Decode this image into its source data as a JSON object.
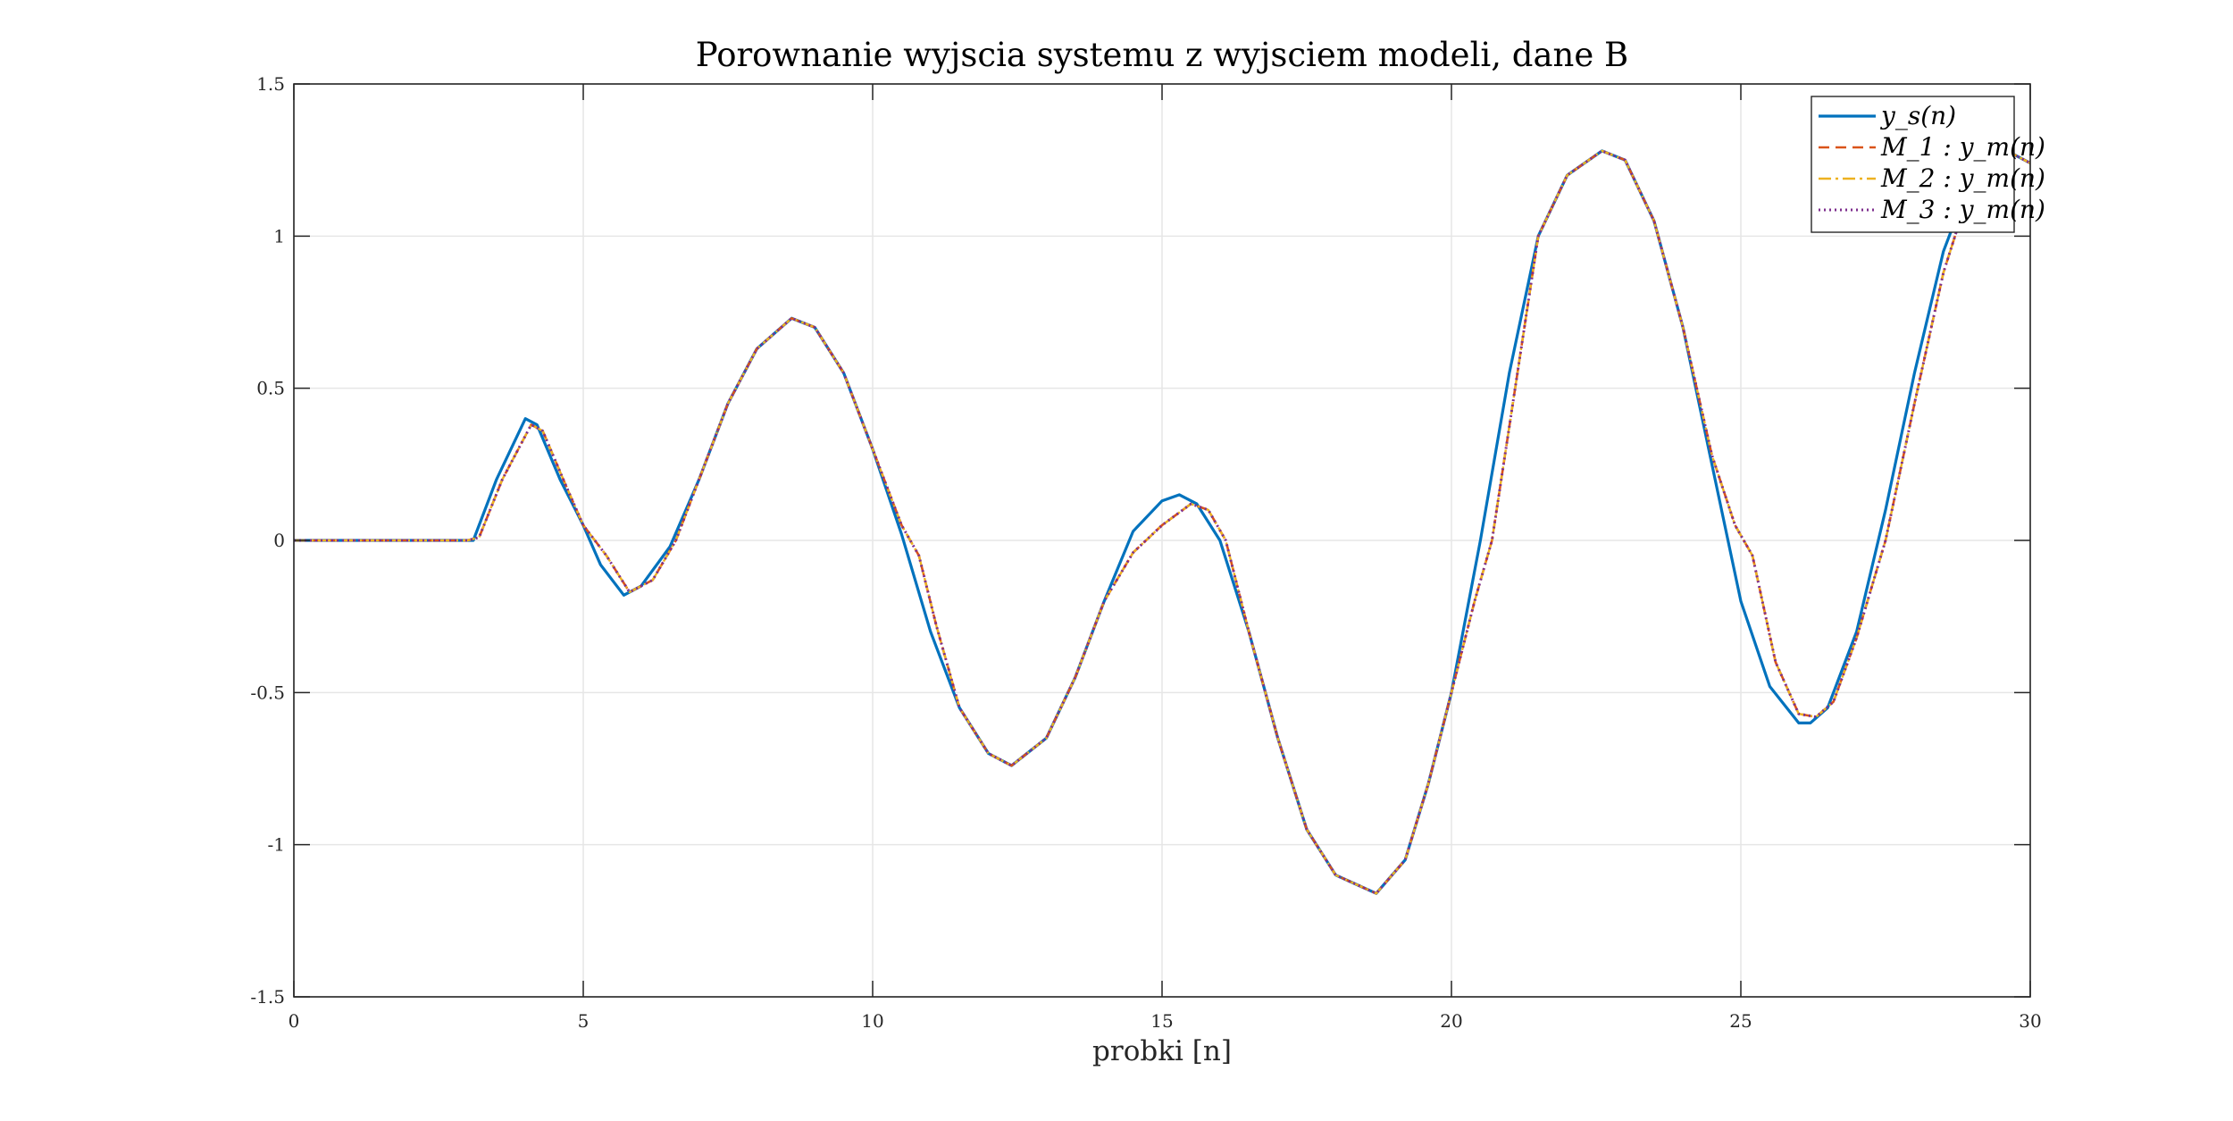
{
  "chart_data": {
    "type": "line",
    "title": "Porownanie wyjscia systemu z wyjsciem modeli, dane B",
    "xlabel": "probki [n]",
    "ylabel": "",
    "xlim": [
      0,
      30
    ],
    "ylim": [
      -1.5,
      1.5
    ],
    "xticks": [
      0,
      5,
      10,
      15,
      20,
      25,
      30
    ],
    "yticks": [
      -1.5,
      -1,
      -0.5,
      0,
      0.5,
      1,
      1.5
    ],
    "xtick_labels": [
      "0",
      "5",
      "10",
      "15",
      "20",
      "25",
      "30"
    ],
    "ytick_labels": [
      "-1.5",
      "-1",
      "-0.5",
      "0",
      "0.5",
      "1",
      "1.5"
    ],
    "grid": true,
    "legend_position": "top-right",
    "series": [
      {
        "name": "y_s(n)",
        "color": "#0072BD",
        "dash": "solid",
        "points": [
          [
            0,
            0
          ],
          [
            2,
            0
          ],
          [
            3,
            0
          ],
          [
            3.1,
            0
          ],
          [
            3.5,
            0.2
          ],
          [
            4,
            0.4
          ],
          [
            4.2,
            0.38
          ],
          [
            4.6,
            0.2
          ],
          [
            5,
            0.05
          ],
          [
            5.3,
            -0.08
          ],
          [
            5.7,
            -0.18
          ],
          [
            6,
            -0.15
          ],
          [
            6.5,
            -0.02
          ],
          [
            7,
            0.2
          ],
          [
            7.5,
            0.45
          ],
          [
            8,
            0.63
          ],
          [
            8.6,
            0.73
          ],
          [
            9,
            0.7
          ],
          [
            9.5,
            0.55
          ],
          [
            10,
            0.3
          ],
          [
            10.5,
            0.02
          ],
          [
            11,
            -0.3
          ],
          [
            11.5,
            -0.55
          ],
          [
            12,
            -0.7
          ],
          [
            12.4,
            -0.74
          ],
          [
            13,
            -0.65
          ],
          [
            13.5,
            -0.45
          ],
          [
            14,
            -0.2
          ],
          [
            14.5,
            0.03
          ],
          [
            15,
            0.13
          ],
          [
            15.3,
            0.15
          ],
          [
            15.6,
            0.12
          ],
          [
            16,
            0.0
          ],
          [
            16.5,
            -0.3
          ],
          [
            17,
            -0.65
          ],
          [
            17.5,
            -0.95
          ],
          [
            18,
            -1.1
          ],
          [
            18.7,
            -1.16
          ],
          [
            19.2,
            -1.05
          ],
          [
            19.6,
            -0.8
          ],
          [
            20,
            -0.5
          ],
          [
            20.5,
            0.0
          ],
          [
            21,
            0.55
          ],
          [
            21.5,
            1.0
          ],
          [
            22,
            1.2
          ],
          [
            22.6,
            1.28
          ],
          [
            23,
            1.25
          ],
          [
            23.5,
            1.05
          ],
          [
            24,
            0.7
          ],
          [
            24.5,
            0.25
          ],
          [
            25,
            -0.2
          ],
          [
            25.5,
            -0.48
          ],
          [
            26,
            -0.6
          ],
          [
            26.2,
            -0.6
          ],
          [
            26.5,
            -0.55
          ],
          [
            27,
            -0.3
          ],
          [
            27.5,
            0.1
          ],
          [
            28,
            0.55
          ],
          [
            28.5,
            0.95
          ],
          [
            29,
            1.2
          ],
          [
            29.5,
            1.29
          ],
          [
            30,
            1.24
          ]
        ]
      },
      {
        "name": "M_1 : y_m(n)",
        "color": "#D95319",
        "dash": "dashed",
        "points": [
          [
            0,
            0
          ],
          [
            2,
            0
          ],
          [
            3,
            0
          ],
          [
            3.2,
            0.01
          ],
          [
            3.6,
            0.2
          ],
          [
            4.1,
            0.38
          ],
          [
            4.3,
            0.36
          ],
          [
            4.7,
            0.18
          ],
          [
            5,
            0.05
          ],
          [
            5.4,
            -0.05
          ],
          [
            5.8,
            -0.17
          ],
          [
            6.2,
            -0.13
          ],
          [
            6.6,
            0.0
          ],
          [
            7,
            0.2
          ],
          [
            7.5,
            0.45
          ],
          [
            8,
            0.63
          ],
          [
            8.6,
            0.73
          ],
          [
            9,
            0.7
          ],
          [
            9.5,
            0.55
          ],
          [
            10,
            0.3
          ],
          [
            10.5,
            0.05
          ],
          [
            10.8,
            -0.05
          ],
          [
            11.1,
            -0.28
          ],
          [
            11.5,
            -0.55
          ],
          [
            12,
            -0.7
          ],
          [
            12.4,
            -0.74
          ],
          [
            13,
            -0.65
          ],
          [
            13.5,
            -0.45
          ],
          [
            14,
            -0.2
          ],
          [
            14.5,
            -0.04
          ],
          [
            15,
            0.05
          ],
          [
            15.5,
            0.12
          ],
          [
            15.8,
            0.1
          ],
          [
            16.1,
            0.0
          ],
          [
            16.5,
            -0.3
          ],
          [
            17,
            -0.65
          ],
          [
            17.5,
            -0.95
          ],
          [
            18,
            -1.1
          ],
          [
            18.7,
            -1.16
          ],
          [
            19.2,
            -1.05
          ],
          [
            19.6,
            -0.8
          ],
          [
            20,
            -0.5
          ],
          [
            20.4,
            -0.2
          ],
          [
            20.7,
            0.0
          ],
          [
            21.1,
            0.5
          ],
          [
            21.5,
            1.0
          ],
          [
            22,
            1.2
          ],
          [
            22.6,
            1.28
          ],
          [
            23,
            1.25
          ],
          [
            23.5,
            1.05
          ],
          [
            24,
            0.7
          ],
          [
            24.5,
            0.28
          ],
          [
            24.9,
            0.05
          ],
          [
            25.2,
            -0.05
          ],
          [
            25.6,
            -0.4
          ],
          [
            26,
            -0.57
          ],
          [
            26.3,
            -0.58
          ],
          [
            26.6,
            -0.53
          ],
          [
            27,
            -0.32
          ],
          [
            27.5,
            0.0
          ],
          [
            28,
            0.45
          ],
          [
            28.5,
            0.88
          ],
          [
            29,
            1.18
          ],
          [
            29.5,
            1.29
          ],
          [
            30,
            1.24
          ]
        ]
      },
      {
        "name": "M_2 : y_m(n)",
        "color": "#EDB120",
        "dash": "dashdot",
        "points": [
          [
            0,
            0
          ],
          [
            2,
            0
          ],
          [
            3,
            0
          ],
          [
            3.2,
            0.01
          ],
          [
            3.6,
            0.2
          ],
          [
            4.1,
            0.38
          ],
          [
            4.3,
            0.36
          ],
          [
            4.7,
            0.18
          ],
          [
            5,
            0.05
          ],
          [
            5.4,
            -0.05
          ],
          [
            5.8,
            -0.17
          ],
          [
            6.2,
            -0.13
          ],
          [
            6.6,
            0.0
          ],
          [
            7,
            0.2
          ],
          [
            7.5,
            0.45
          ],
          [
            8,
            0.63
          ],
          [
            8.6,
            0.73
          ],
          [
            9,
            0.7
          ],
          [
            9.5,
            0.55
          ],
          [
            10,
            0.3
          ],
          [
            10.5,
            0.05
          ],
          [
            10.8,
            -0.05
          ],
          [
            11.1,
            -0.28
          ],
          [
            11.5,
            -0.55
          ],
          [
            12,
            -0.7
          ],
          [
            12.4,
            -0.74
          ],
          [
            13,
            -0.65
          ],
          [
            13.5,
            -0.45
          ],
          [
            14,
            -0.2
          ],
          [
            14.5,
            -0.04
          ],
          [
            15,
            0.05
          ],
          [
            15.5,
            0.12
          ],
          [
            15.8,
            0.1
          ],
          [
            16.1,
            0.0
          ],
          [
            16.5,
            -0.3
          ],
          [
            17,
            -0.65
          ],
          [
            17.5,
            -0.95
          ],
          [
            18,
            -1.1
          ],
          [
            18.7,
            -1.16
          ],
          [
            19.2,
            -1.05
          ],
          [
            19.6,
            -0.8
          ],
          [
            20,
            -0.5
          ],
          [
            20.4,
            -0.2
          ],
          [
            20.7,
            0.0
          ],
          [
            21.1,
            0.5
          ],
          [
            21.5,
            1.0
          ],
          [
            22,
            1.2
          ],
          [
            22.6,
            1.28
          ],
          [
            23,
            1.25
          ],
          [
            23.5,
            1.05
          ],
          [
            24,
            0.7
          ],
          [
            24.5,
            0.28
          ],
          [
            24.9,
            0.05
          ],
          [
            25.2,
            -0.05
          ],
          [
            25.6,
            -0.4
          ],
          [
            26,
            -0.57
          ],
          [
            26.3,
            -0.58
          ],
          [
            26.6,
            -0.53
          ],
          [
            27,
            -0.32
          ],
          [
            27.5,
            0.0
          ],
          [
            28,
            0.45
          ],
          [
            28.5,
            0.88
          ],
          [
            29,
            1.18
          ],
          [
            29.5,
            1.29
          ],
          [
            30,
            1.24
          ]
        ]
      },
      {
        "name": "M_3 : y_m(n)",
        "color": "#7E2F8E",
        "dash": "dotted",
        "points": [
          [
            0,
            0
          ],
          [
            2,
            0
          ],
          [
            3,
            0
          ],
          [
            3.2,
            0.01
          ],
          [
            3.6,
            0.2
          ],
          [
            4.1,
            0.38
          ],
          [
            4.3,
            0.36
          ],
          [
            4.7,
            0.18
          ],
          [
            5,
            0.05
          ],
          [
            5.4,
            -0.05
          ],
          [
            5.8,
            -0.17
          ],
          [
            6.2,
            -0.13
          ],
          [
            6.6,
            0.0
          ],
          [
            7,
            0.2
          ],
          [
            7.5,
            0.45
          ],
          [
            8,
            0.63
          ],
          [
            8.6,
            0.73
          ],
          [
            9,
            0.7
          ],
          [
            9.5,
            0.55
          ],
          [
            10,
            0.3
          ],
          [
            10.5,
            0.05
          ],
          [
            10.8,
            -0.05
          ],
          [
            11.1,
            -0.28
          ],
          [
            11.5,
            -0.55
          ],
          [
            12,
            -0.7
          ],
          [
            12.4,
            -0.74
          ],
          [
            13,
            -0.65
          ],
          [
            13.5,
            -0.45
          ],
          [
            14,
            -0.2
          ],
          [
            14.5,
            -0.04
          ],
          [
            15,
            0.05
          ],
          [
            15.5,
            0.12
          ],
          [
            15.8,
            0.1
          ],
          [
            16.1,
            0.0
          ],
          [
            16.5,
            -0.3
          ],
          [
            17,
            -0.65
          ],
          [
            17.5,
            -0.95
          ],
          [
            18,
            -1.1
          ],
          [
            18.7,
            -1.16
          ],
          [
            19.2,
            -1.05
          ],
          [
            19.6,
            -0.8
          ],
          [
            20,
            -0.5
          ],
          [
            20.4,
            -0.2
          ],
          [
            20.7,
            0.0
          ],
          [
            21.1,
            0.5
          ],
          [
            21.5,
            1.0
          ],
          [
            22,
            1.2
          ],
          [
            22.6,
            1.28
          ],
          [
            23,
            1.25
          ],
          [
            23.5,
            1.05
          ],
          [
            24,
            0.7
          ],
          [
            24.5,
            0.28
          ],
          [
            24.9,
            0.05
          ],
          [
            25.2,
            -0.05
          ],
          [
            25.6,
            -0.4
          ],
          [
            26,
            -0.57
          ],
          [
            26.3,
            -0.58
          ],
          [
            26.6,
            -0.53
          ],
          [
            27,
            -0.32
          ],
          [
            27.5,
            0.0
          ],
          [
            28,
            0.45
          ],
          [
            28.5,
            0.88
          ],
          [
            29,
            1.18
          ],
          [
            29.5,
            1.29
          ],
          [
            30,
            1.24
          ]
        ]
      }
    ]
  }
}
